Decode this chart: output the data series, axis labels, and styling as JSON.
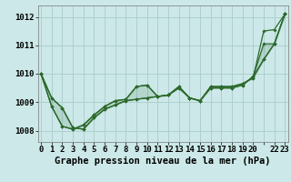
{
  "title": "Graphe pression niveau de la mer (hPa)",
  "background_color": "#cce8e8",
  "grid_color": "#aacccc",
  "line_color": "#2d6a2d",
  "ylim": [
    1007.6,
    1012.4
  ],
  "yticks": [
    1008,
    1009,
    1010,
    1011,
    1012
  ],
  "xlim": [
    -0.3,
    23.3
  ],
  "series_smooth": [
    1010.0,
    1009.15,
    1008.8,
    1008.1,
    1008.05,
    1008.45,
    1008.75,
    1008.9,
    1009.05,
    1009.1,
    1009.15,
    1009.2,
    1009.25,
    1009.5,
    1009.15,
    1009.05,
    1009.5,
    1009.5,
    1009.5,
    1009.6,
    1009.9,
    1010.5,
    1011.05,
    1012.1
  ],
  "series_jagged": [
    1010.0,
    1008.85,
    1008.15,
    1008.05,
    1008.2,
    1008.55,
    1008.85,
    1009.05,
    1009.1,
    1009.55,
    1009.6,
    1009.2,
    1009.25,
    1009.55,
    1009.15,
    1009.05,
    1009.55,
    1009.55,
    1009.55,
    1009.65,
    1009.85,
    1011.5,
    1011.55,
    1012.1
  ],
  "series_top": [
    1010.0,
    1009.15,
    1008.8,
    1008.1,
    1008.05,
    1008.45,
    1008.75,
    1008.9,
    1009.05,
    1009.1,
    1009.15,
    1009.2,
    1009.25,
    1009.5,
    1009.15,
    1009.05,
    1009.5,
    1009.5,
    1009.5,
    1009.6,
    1009.9,
    1011.05,
    1011.05,
    1012.1
  ],
  "series_bottom": [
    1010.0,
    1008.85,
    1008.15,
    1008.05,
    1008.2,
    1008.55,
    1008.85,
    1009.05,
    1009.1,
    1009.55,
    1009.6,
    1009.2,
    1009.25,
    1009.55,
    1009.15,
    1009.05,
    1009.55,
    1009.55,
    1009.55,
    1009.65,
    1009.85,
    1010.5,
    1011.05,
    1012.1
  ],
  "tick_fontsize": 6.5,
  "xlabel_fontsize": 7.5
}
